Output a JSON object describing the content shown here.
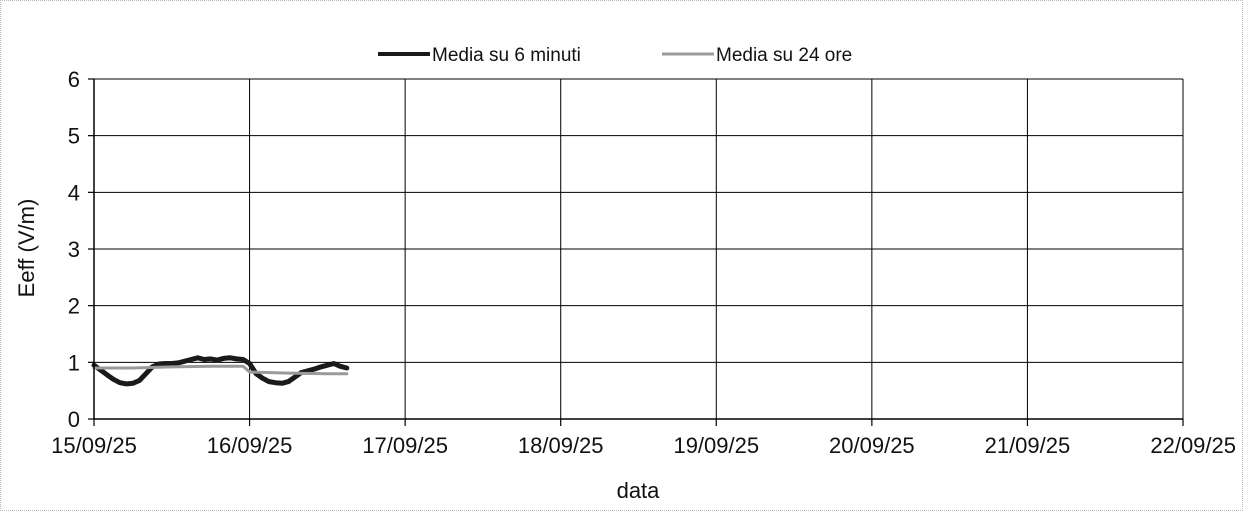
{
  "chart_data": {
    "type": "line",
    "xlabel": "data",
    "ylabel": "Eeff (V/m)",
    "ylim": [
      0,
      6
    ],
    "yticks": [
      "0",
      "1",
      "2",
      "3",
      "4",
      "5",
      "6"
    ],
    "xlim": [
      "15/09/25",
      "22/09/25"
    ],
    "xticks": [
      "15/09/25",
      "16/09/25",
      "17/09/25",
      "18/09/25",
      "19/09/25",
      "20/09/25",
      "21/09/25",
      "22/09/25"
    ],
    "grid": true,
    "legend_position": "top",
    "series": [
      {
        "name": "Media su 6 minuti",
        "color": "#1a1a1a",
        "x": [
          "15/09/25 00:00",
          "15/09/25 02:00",
          "15/09/25 03:00",
          "15/09/25 04:00",
          "15/09/25 05:00",
          "15/09/25 06:00",
          "15/09/25 07:00",
          "15/09/25 08:00",
          "15/09/25 09:00",
          "15/09/25 10:00",
          "15/09/25 11:00",
          "15/09/25 12:00",
          "15/09/25 13:00",
          "15/09/25 14:00",
          "15/09/25 15:00",
          "15/09/25 16:00",
          "15/09/25 17:00",
          "15/09/25 18:00",
          "15/09/25 19:00",
          "15/09/25 20:00",
          "15/09/25 21:00",
          "15/09/25 22:00",
          "15/09/25 23:00",
          "16/09/25 00:00",
          "16/09/25 01:00",
          "16/09/25 02:00",
          "16/09/25 03:00",
          "16/09/25 04:00",
          "16/09/25 05:00",
          "16/09/25 06:00",
          "16/09/25 07:00",
          "16/09/25 08:00",
          "16/09/25 09:00",
          "16/09/25 10:00",
          "16/09/25 11:00",
          "16/09/25 12:00",
          "16/09/25 13:00",
          "16/09/25 14:00",
          "16/09/25 15:00"
        ],
        "y": [
          0.95,
          0.78,
          0.7,
          0.64,
          0.62,
          0.63,
          0.68,
          0.8,
          0.92,
          0.97,
          0.98,
          0.98,
          0.99,
          1.02,
          1.05,
          1.08,
          1.05,
          1.06,
          1.04,
          1.07,
          1.08,
          1.06,
          1.05,
          0.98,
          0.8,
          0.72,
          0.66,
          0.64,
          0.63,
          0.66,
          0.74,
          0.82,
          0.85,
          0.88,
          0.92,
          0.95,
          0.98,
          0.93,
          0.9
        ]
      },
      {
        "name": "Media su 24 ore",
        "color": "#9a9a9a",
        "x": [
          "15/09/25 00:00",
          "15/09/25 06:00",
          "15/09/25 12:00",
          "15/09/25 18:00",
          "15/09/25 23:00",
          "16/09/25 00:00",
          "16/09/25 06:00",
          "16/09/25 12:00",
          "16/09/25 15:00"
        ],
        "y": [
          0.9,
          0.9,
          0.92,
          0.93,
          0.93,
          0.83,
          0.81,
          0.8,
          0.8
        ]
      }
    ]
  }
}
